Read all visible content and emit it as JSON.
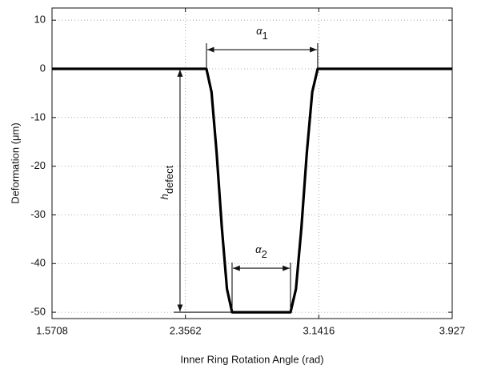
{
  "chart_data": {
    "type": "line",
    "xlabel": "Inner Ring Rotation Angle (rad)",
    "ylabel": "Deformation (μm)",
    "x": [
      1.5708,
      2.48,
      2.51,
      2.54,
      2.571,
      2.601,
      2.631,
      2.975,
      3.007,
      3.039,
      3.071,
      3.103,
      3.135,
      3.927
    ],
    "values": [
      0,
      0,
      -4.77,
      -17.27,
      -32.73,
      -45.23,
      -50,
      -50,
      -45.23,
      -32.73,
      -17.27,
      -4.77,
      0,
      0
    ],
    "color": "#000000",
    "xlim": [
      1.5708,
      3.927
    ],
    "xticks": [
      1.5708,
      2.3562,
      3.1416,
      3.927
    ],
    "ylim": [
      -51.3,
      12.5
    ],
    "yticks": [
      10,
      0,
      -10,
      -20,
      -30,
      -40,
      -50
    ],
    "grid": true,
    "annotations": [
      {
        "text": "α",
        "sub": "1"
      },
      {
        "text": "α",
        "sub": "2"
      },
      {
        "text": "h",
        "sub": "defect"
      }
    ]
  }
}
